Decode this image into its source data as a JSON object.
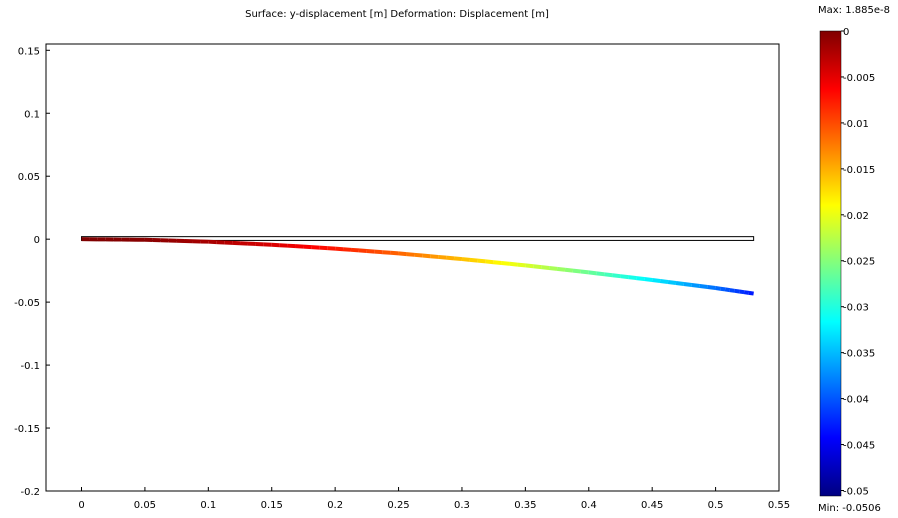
{
  "chart_data": {
    "type": "line",
    "title": "Surface: y-displacement [m]   Deformation: Displacement [m]",
    "xlabel": "",
    "ylabel": "",
    "xlim": [
      -0.028,
      0.55
    ],
    "ylim": [
      -0.2,
      0.155
    ],
    "x_ticks": [
      0,
      0.05,
      0.1,
      0.15,
      0.2,
      0.25,
      0.3,
      0.35,
      0.4,
      0.45,
      0.5,
      0.55
    ],
    "x_tick_labels": [
      "0",
      "0.05",
      "0.1",
      "0.15",
      "0.2",
      "0.25",
      "0.3",
      "0.35",
      "0.4",
      "0.45",
      "0.5",
      "0.55"
    ],
    "y_ticks": [
      0.15,
      0.1,
      0.05,
      0,
      -0.05,
      -0.1,
      -0.15,
      -0.2
    ],
    "y_tick_labels": [
      "0.15",
      "0.1",
      "0.05",
      "0",
      "-0.05",
      "-0.1",
      "-0.15",
      "-0.2"
    ],
    "grid": false,
    "undeformed_outline": {
      "x": [
        0,
        0.53
      ],
      "y_top": 0.002,
      "y_bottom": -0.001
    },
    "series": [
      {
        "x": [
          0,
          0.05,
          0.1,
          0.15,
          0.2,
          0.25,
          0.3,
          0.35,
          0.4,
          0.45,
          0.5,
          0.53
        ],
        "values": [
          0,
          -0.0005,
          -0.002,
          -0.0044,
          -0.0075,
          -0.0113,
          -0.0158,
          -0.0208,
          -0.0264,
          -0.0324,
          -0.0388,
          -0.0432
        ]
      }
    ],
    "colorbar": {
      "max_label": "Max: 1.885e-8",
      "min_label": "Min: -0.0506",
      "range": [
        -0.0506,
        0
      ],
      "ticks": [
        0,
        -0.005,
        -0.01,
        -0.015,
        -0.02,
        -0.025,
        -0.03,
        -0.035,
        -0.04,
        -0.045,
        -0.05
      ],
      "tick_labels": [
        "0",
        "-0.005",
        "-0.01",
        "-0.015",
        "-0.02",
        "-0.025",
        "-0.03",
        "-0.035",
        "-0.04",
        "-0.045",
        "-0.05"
      ],
      "colormap": "jet"
    }
  }
}
